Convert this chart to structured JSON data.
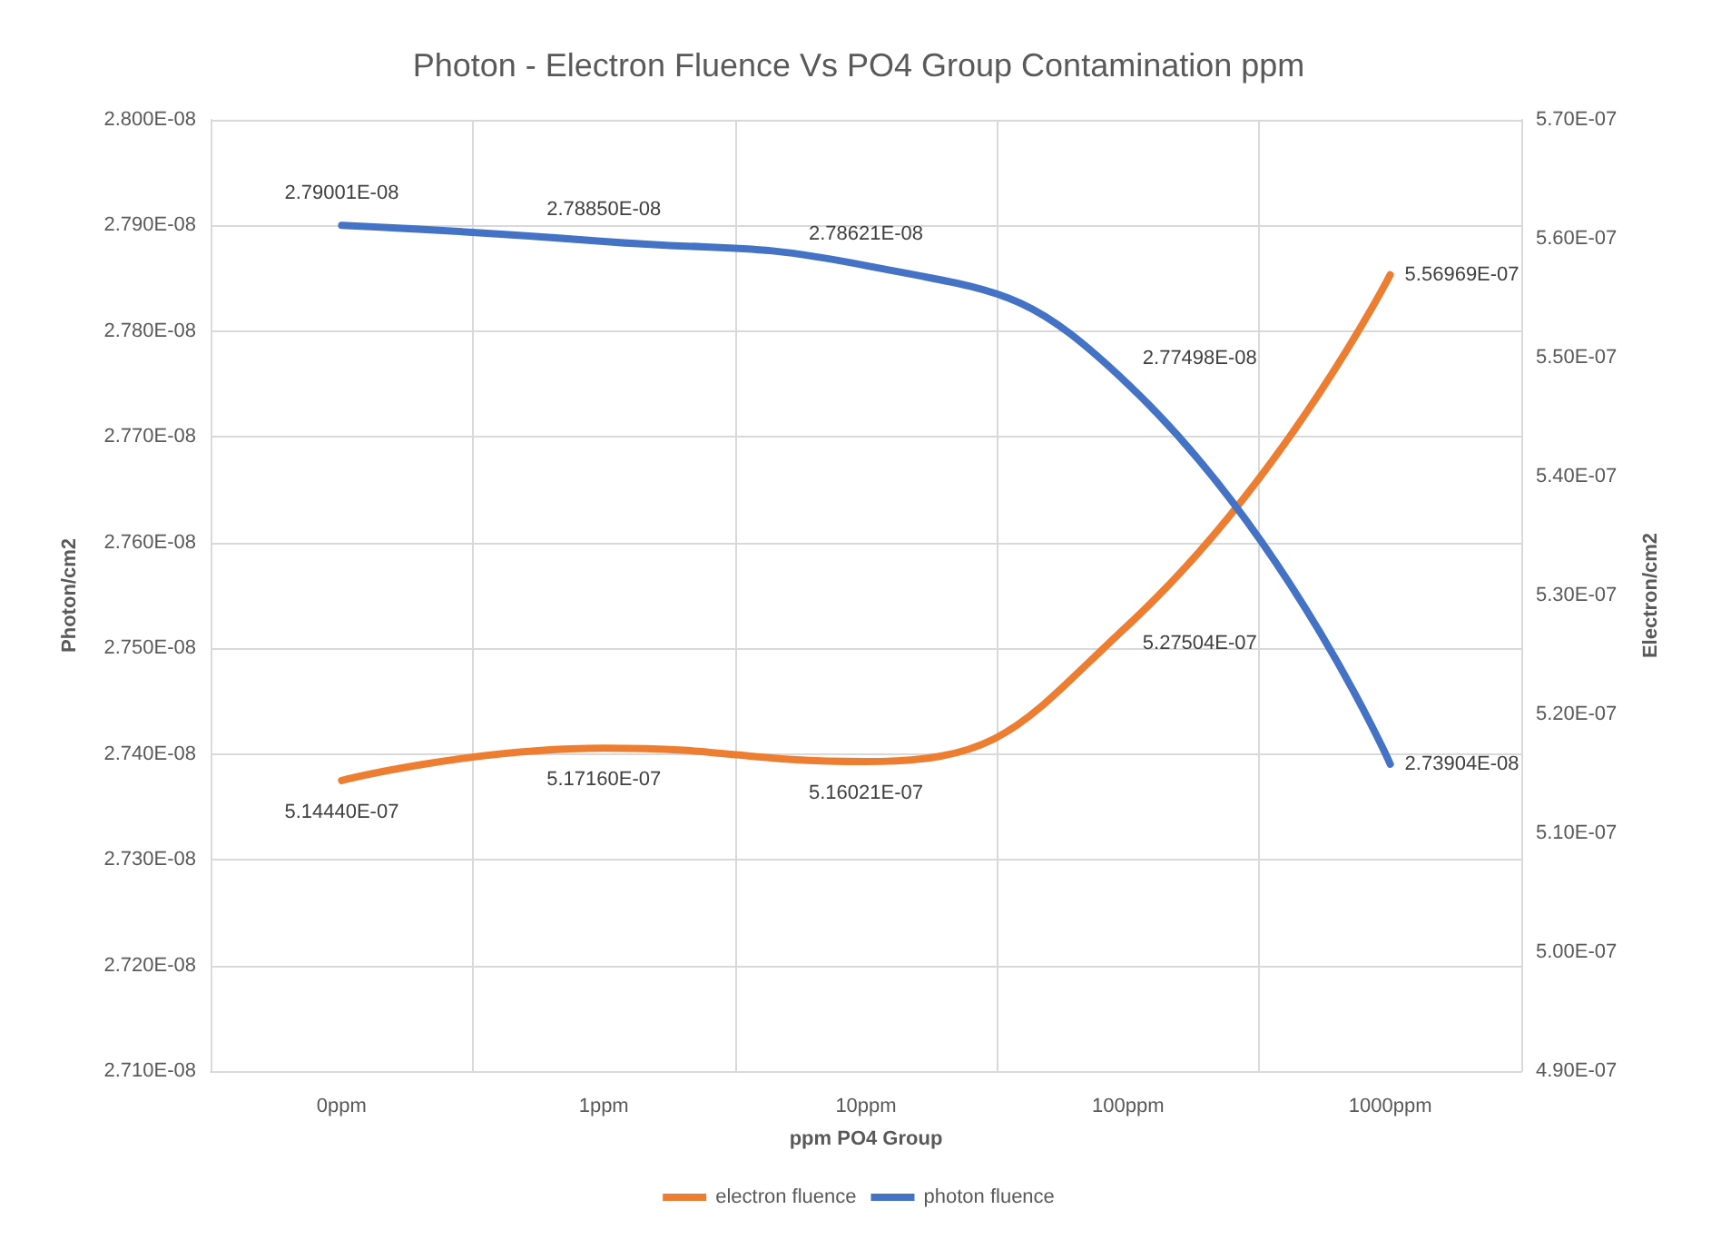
{
  "chart_data": {
    "type": "line",
    "title": "Photon - Electron Fluence Vs PO4 Group Contamination ppm",
    "xlabel": "ppm PO4 Group",
    "ylabel": "Photon/cm2",
    "y2label": "Electron/cm2",
    "categories": [
      "0ppm",
      "1ppm",
      "10ppm",
      "100ppm",
      "1000ppm"
    ],
    "series": [
      {
        "name": "electron fluence",
        "color": "#ed7d31",
        "axis": "y2",
        "values": [
          5.1444e-07,
          5.1716e-07,
          5.16021e-07,
          5.27504e-07,
          5.56969e-07
        ],
        "value_labels": [
          "5.14440E-07",
          "5.17160E-07",
          "5.16021E-07",
          "5.27504E-07",
          "5.56969E-07"
        ]
      },
      {
        "name": "photon fluence",
        "color": "#4472c4",
        "values": [
          2.79001e-08,
          2.7885e-08,
          2.78621e-08,
          2.77498e-08,
          2.73904e-08
        ],
        "value_labels": [
          "2.79001E-08",
          "2.78850E-08",
          "2.78621E-08",
          "2.77498E-08",
          "2.73904E-08"
        ]
      }
    ],
    "ylim": [
      2.71e-08,
      2.8e-08
    ],
    "yticks": [
      {
        "value": 2.71e-08,
        "label": "2.710E-08"
      },
      {
        "value": 2.72e-08,
        "label": "2.720E-08"
      },
      {
        "value": 2.73e-08,
        "label": "2.730E-08"
      },
      {
        "value": 2.74e-08,
        "label": "2.740E-08"
      },
      {
        "value": 2.75e-08,
        "label": "2.750E-08"
      },
      {
        "value": 2.76e-08,
        "label": "2.760E-08"
      },
      {
        "value": 2.77e-08,
        "label": "2.770E-08"
      },
      {
        "value": 2.78e-08,
        "label": "2.780E-08"
      },
      {
        "value": 2.79e-08,
        "label": "2.790E-08"
      },
      {
        "value": 2.8e-08,
        "label": "2.800E-08"
      }
    ],
    "y2lim": [
      4.9e-07,
      5.7e-07
    ],
    "y2ticks": [
      {
        "value": 4.9e-07,
        "label": "4.90E-07"
      },
      {
        "value": 5e-07,
        "label": "5.00E-07"
      },
      {
        "value": 5.1e-07,
        "label": "5.10E-07"
      },
      {
        "value": 5.2e-07,
        "label": "5.20E-07"
      },
      {
        "value": 5.3e-07,
        "label": "5.30E-07"
      },
      {
        "value": 5.4e-07,
        "label": "5.40E-07"
      },
      {
        "value": 5.5e-07,
        "label": "5.50E-07"
      },
      {
        "value": 5.6e-07,
        "label": "5.60E-07"
      },
      {
        "value": 5.7e-07,
        "label": "5.70E-07"
      }
    ],
    "grid": true,
    "legend": "bottom",
    "marker": "none",
    "line_style": "solid"
  }
}
